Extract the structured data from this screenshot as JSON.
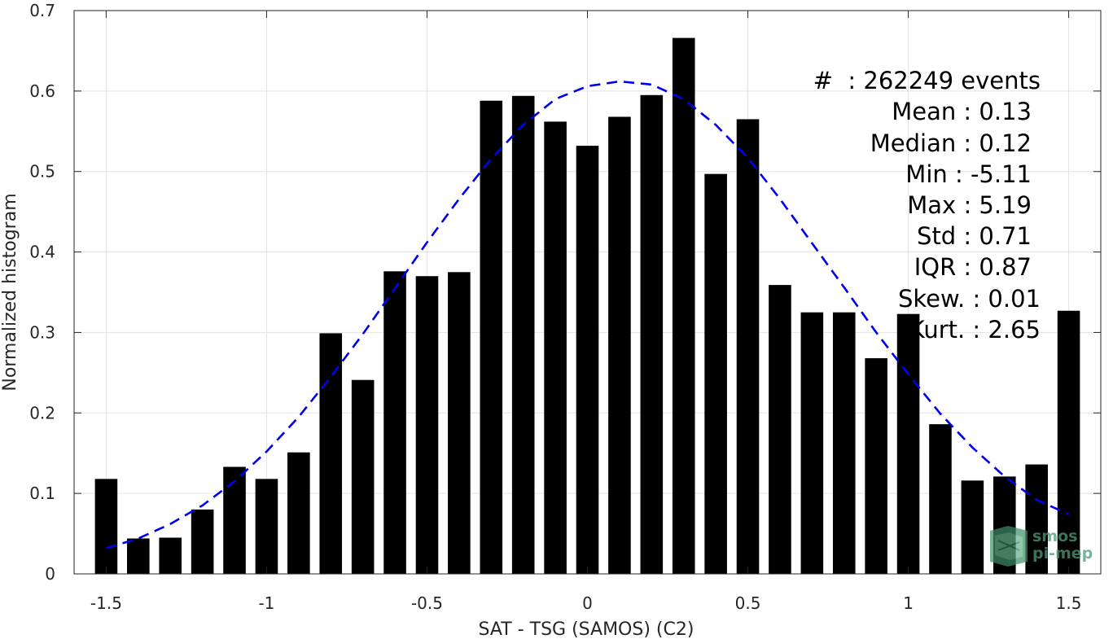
{
  "chart_data": {
    "type": "bar",
    "xlabel": "SAT - TSG (SAMOS) (C2)",
    "ylabel": "Normalized histogram",
    "xlim": [
      -1.6,
      1.6
    ],
    "ylim": [
      0,
      0.7
    ],
    "xticks": [
      -1.5,
      -1,
      -0.5,
      0,
      0.5,
      1,
      1.5
    ],
    "xtick_labels": [
      "-1.5",
      "-1",
      "-0.5",
      "0",
      "0.5",
      "1",
      "1.5"
    ],
    "yticks": [
      0,
      0.1,
      0.2,
      0.3,
      0.4,
      0.5,
      0.6,
      0.7
    ],
    "ytick_labels": [
      "0",
      "0.1",
      "0.2",
      "0.3",
      "0.4",
      "0.5",
      "0.6",
      "0.7"
    ],
    "grid": true,
    "bar_color": "#000000",
    "fit_color": "#0000ee",
    "bin_centers": [
      -1.5,
      -1.4,
      -1.3,
      -1.2,
      -1.1,
      -1.0,
      -0.9,
      -0.8,
      -0.7,
      -0.6,
      -0.5,
      -0.4,
      -0.3,
      -0.2,
      -0.1,
      0.0,
      0.1,
      0.2,
      0.3,
      0.4,
      0.5,
      0.6,
      0.7,
      0.8,
      0.9,
      1.0,
      1.1,
      1.2,
      1.3,
      1.4,
      1.5
    ],
    "values": [
      0.118,
      0.044,
      0.045,
      0.08,
      0.133,
      0.118,
      0.151,
      0.299,
      0.241,
      0.376,
      0.37,
      0.375,
      0.588,
      0.594,
      0.562,
      0.532,
      0.568,
      0.595,
      0.666,
      0.497,
      0.565,
      0.359,
      0.325,
      0.325,
      0.268,
      0.323,
      0.186,
      0.116,
      0.121,
      0.136,
      0.327
    ],
    "fit_curve": {
      "style": "dashed",
      "x": [
        -1.5,
        -1.4,
        -1.3,
        -1.2,
        -1.1,
        -1.0,
        -0.9,
        -0.8,
        -0.7,
        -0.6,
        -0.5,
        -0.4,
        -0.3,
        -0.2,
        -0.1,
        0.0,
        0.1,
        0.2,
        0.3,
        0.4,
        0.5,
        0.6,
        0.7,
        0.8,
        0.9,
        1.0,
        1.1,
        1.2,
        1.3,
        1.4,
        1.5
      ],
      "y": [
        0.032,
        0.044,
        0.062,
        0.085,
        0.115,
        0.152,
        0.195,
        0.245,
        0.298,
        0.355,
        0.412,
        0.466,
        0.516,
        0.558,
        0.59,
        0.606,
        0.612,
        0.608,
        0.59,
        0.558,
        0.517,
        0.466,
        0.411,
        0.356,
        0.3,
        0.248,
        0.199,
        0.157,
        0.121,
        0.092,
        0.074
      ]
    },
    "annotations": [
      "#  : 262249 events",
      "Mean : 0.13",
      "Median : 0.12",
      "Min : -5.11",
      "Max : 5.19",
      "Std : 0.71",
      "IQR : 0.87",
      "Skew. : 0.01",
      "Kurt. : 2.65"
    ]
  },
  "logo": {
    "line1": "smos",
    "line2": "pi-mep"
  }
}
